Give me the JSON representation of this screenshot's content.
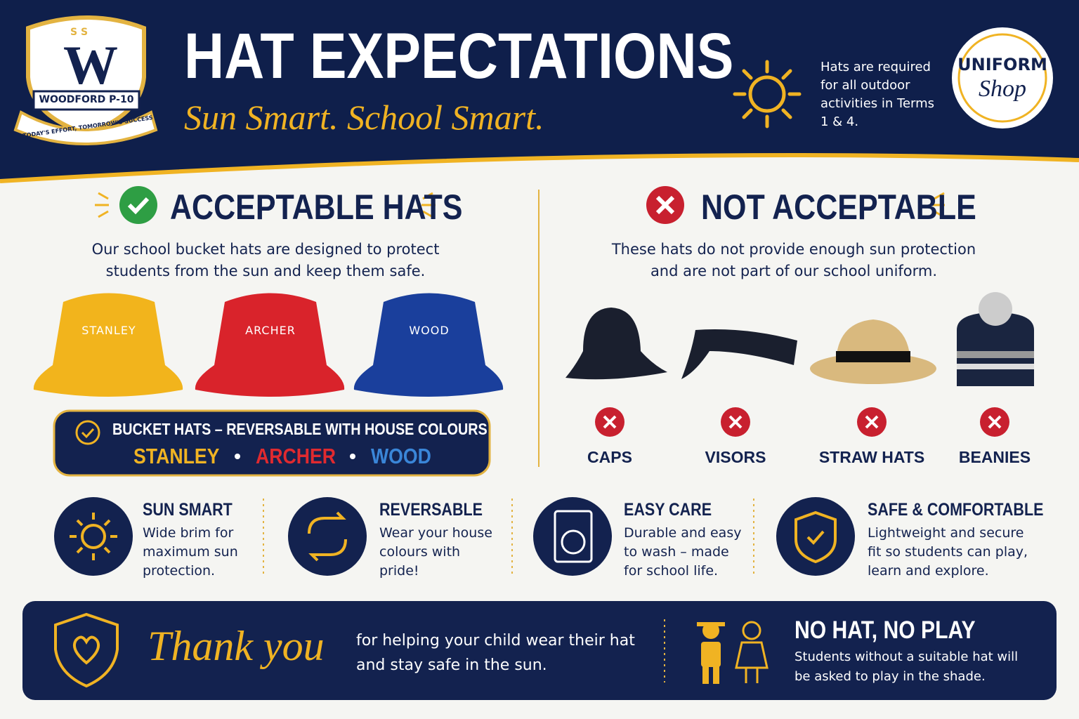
{
  "header": {
    "logo": {
      "marks": "S S",
      "letter": "W",
      "name": "WOODFORD P-10",
      "motto": "TODAY'S EFFORT, TOMORROW'S SUCCESS"
    },
    "title": "HAT EXPECTATIONS",
    "tagline": "Sun Smart. School Smart.",
    "notice": "Hats are required for all outdoor activities in Terms 1 & 4.",
    "shop": {
      "line1": "UNIFORM",
      "line2": "Shop"
    }
  },
  "acceptable": {
    "heading": "ACCEPTABLE HATS",
    "description": "Our school bucket hats are designed to protect students from the sun and keep them safe.",
    "hats": [
      "STANLEY",
      "ARCHER",
      "WOOD"
    ],
    "banner": {
      "title": "BUCKET HATS – REVERSABLE WITH HOUSE COLOURS",
      "houses": [
        "STANLEY",
        "ARCHER",
        "WOOD"
      ]
    }
  },
  "not_acceptable": {
    "heading": "NOT ACCEPTABLE",
    "description": "These hats do not provide enough sun protection and are not part of our school uniform.",
    "items": [
      "CAPS",
      "VISORS",
      "STRAW HATS",
      "BEANIES"
    ]
  },
  "features": [
    {
      "title": "SUN SMART",
      "text": "Wide brim for maximum sun protection."
    },
    {
      "title": "REVERSABLE",
      "text": "Wear your house colours with pride!"
    },
    {
      "title": "EASY CARE",
      "text": "Durable and easy to wash – made for school life."
    },
    {
      "title": "SAFE & COMFORTABLE",
      "text": "Lightweight and secure fit so students can play, learn and explore."
    }
  ],
  "footer": {
    "thank_you": "Thank you",
    "message": "for helping your child wear their hat and stay safe in the sun.",
    "rule_title": "NO HAT, NO PLAY",
    "rule_text": "Students without a suitable hat will be asked to play in the shade."
  }
}
